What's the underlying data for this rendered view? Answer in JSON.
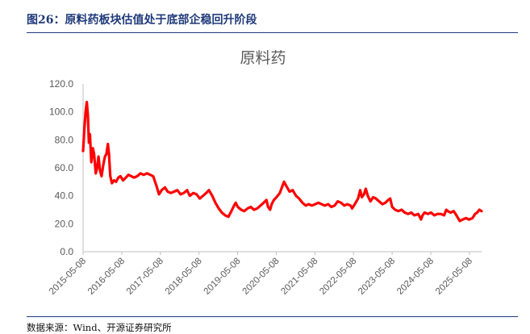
{
  "figure": {
    "title": "图26：原料药板块估值处于底部企稳回升阶段",
    "source": "数据来源：Wind、开源证券研究所"
  },
  "chart_data": {
    "type": "line",
    "title": "原料药",
    "xlabel": "",
    "ylabel": "",
    "ylim": [
      0,
      120
    ],
    "yticks": [
      "0.0",
      "20.0",
      "40.0",
      "60.0",
      "80.0",
      "100.0",
      "120.0"
    ],
    "xticks": [
      "2015-05-08",
      "2016-05-08",
      "2017-05-08",
      "2018-05-08",
      "2019-05-08",
      "2020-05-08",
      "2021-05-08",
      "2022-05-08",
      "2023-05-08",
      "2024-05-08",
      "2025-05-08"
    ],
    "xrange": [
      "2015-05-08",
      "2025-08-31"
    ],
    "grid": false,
    "legend": "none",
    "series": [
      {
        "color": "#ff0000",
        "points": [
          [
            "2015-05-08",
            72
          ],
          [
            "2015-05-20",
            88
          ],
          [
            "2015-06-01",
            100
          ],
          [
            "2015-06-12",
            107
          ],
          [
            "2015-06-22",
            98
          ],
          [
            "2015-07-02",
            78
          ],
          [
            "2015-07-12",
            84
          ],
          [
            "2015-07-25",
            64
          ],
          [
            "2015-08-08",
            74
          ],
          [
            "2015-08-20",
            70
          ],
          [
            "2015-09-05",
            56
          ],
          [
            "2015-09-18",
            60
          ],
          [
            "2015-10-01",
            68
          ],
          [
            "2015-10-15",
            58
          ],
          [
            "2015-10-30",
            54
          ],
          [
            "2015-11-15",
            62
          ],
          [
            "2015-12-01",
            68
          ],
          [
            "2015-12-15",
            70
          ],
          [
            "2015-12-28",
            77
          ],
          [
            "2016-01-08",
            70
          ],
          [
            "2016-01-20",
            54
          ],
          [
            "2016-02-05",
            49
          ],
          [
            "2016-02-25",
            51
          ],
          [
            "2016-03-15",
            50
          ],
          [
            "2016-04-05",
            53
          ],
          [
            "2016-04-25",
            54
          ],
          [
            "2016-05-20",
            51
          ],
          [
            "2016-06-15",
            53
          ],
          [
            "2016-07-10",
            55
          ],
          [
            "2016-08-05",
            54
          ],
          [
            "2016-09-01",
            53
          ],
          [
            "2016-10-01",
            54
          ],
          [
            "2016-11-01",
            56
          ],
          [
            "2016-12-01",
            55
          ],
          [
            "2017-01-01",
            56
          ],
          [
            "2017-02-01",
            55
          ],
          [
            "2017-03-01",
            54
          ],
          [
            "2017-04-01",
            47
          ],
          [
            "2017-04-25",
            41
          ],
          [
            "2017-05-20",
            44
          ],
          [
            "2017-06-20",
            46
          ],
          [
            "2017-07-15",
            43
          ],
          [
            "2017-08-15",
            42
          ],
          [
            "2017-09-15",
            43
          ],
          [
            "2017-10-15",
            44
          ],
          [
            "2017-11-15",
            41
          ],
          [
            "2017-12-15",
            42
          ],
          [
            "2018-01-15",
            44
          ],
          [
            "2018-02-10",
            40
          ],
          [
            "2018-03-15",
            42
          ],
          [
            "2018-04-15",
            41
          ],
          [
            "2018-05-15",
            38
          ],
          [
            "2018-06-15",
            40
          ],
          [
            "2018-07-15",
            42
          ],
          [
            "2018-08-10",
            44
          ],
          [
            "2018-09-10",
            40
          ],
          [
            "2018-10-10",
            35
          ],
          [
            "2018-11-10",
            31
          ],
          [
            "2018-12-10",
            28
          ],
          [
            "2019-01-10",
            26
          ],
          [
            "2019-02-10",
            25
          ],
          [
            "2019-03-10",
            29
          ],
          [
            "2019-04-05",
            33
          ],
          [
            "2019-04-20",
            35
          ],
          [
            "2019-05-10",
            32
          ],
          [
            "2019-06-10",
            30
          ],
          [
            "2019-07-10",
            29
          ],
          [
            "2019-08-10",
            31
          ],
          [
            "2019-09-10",
            32
          ],
          [
            "2019-10-10",
            30
          ],
          [
            "2019-11-10",
            31
          ],
          [
            "2019-12-10",
            33
          ],
          [
            "2020-01-10",
            35
          ],
          [
            "2020-02-05",
            37
          ],
          [
            "2020-02-20",
            32
          ],
          [
            "2020-03-10",
            30
          ],
          [
            "2020-03-25",
            34
          ],
          [
            "2020-04-15",
            37
          ],
          [
            "2020-05-10",
            39
          ],
          [
            "2020-06-10",
            42
          ],
          [
            "2020-07-05",
            47
          ],
          [
            "2020-07-20",
            50
          ],
          [
            "2020-08-10",
            47
          ],
          [
            "2020-09-10",
            43
          ],
          [
            "2020-10-10",
            44
          ],
          [
            "2020-11-10",
            40
          ],
          [
            "2020-12-10",
            38
          ],
          [
            "2021-01-10",
            35
          ],
          [
            "2021-02-10",
            33
          ],
          [
            "2021-03-10",
            34
          ],
          [
            "2021-04-10",
            33
          ],
          [
            "2021-05-10",
            34
          ],
          [
            "2021-06-10",
            35
          ],
          [
            "2021-07-10",
            34
          ],
          [
            "2021-08-10",
            33
          ],
          [
            "2021-09-10",
            34
          ],
          [
            "2021-10-10",
            32
          ],
          [
            "2021-11-10",
            33
          ],
          [
            "2021-12-10",
            36
          ],
          [
            "2022-01-10",
            35
          ],
          [
            "2022-02-10",
            33
          ],
          [
            "2022-03-10",
            34
          ],
          [
            "2022-04-10",
            33
          ],
          [
            "2022-04-25",
            31
          ],
          [
            "2022-05-20",
            34
          ],
          [
            "2022-06-20",
            38
          ],
          [
            "2022-07-10",
            44
          ],
          [
            "2022-07-25",
            39
          ],
          [
            "2022-08-15",
            41
          ],
          [
            "2022-09-01",
            45
          ],
          [
            "2022-09-20",
            40
          ],
          [
            "2022-10-15",
            36
          ],
          [
            "2022-11-10",
            39
          ],
          [
            "2022-12-05",
            38
          ],
          [
            "2023-01-05",
            36
          ],
          [
            "2023-02-05",
            34
          ],
          [
            "2023-03-05",
            35
          ],
          [
            "2023-04-01",
            37
          ],
          [
            "2023-04-20",
            38
          ],
          [
            "2023-05-08",
            32
          ],
          [
            "2023-06-05",
            30
          ],
          [
            "2023-07-05",
            29
          ],
          [
            "2023-08-05",
            30
          ],
          [
            "2023-09-05",
            28
          ],
          [
            "2023-10-05",
            27
          ],
          [
            "2023-11-05",
            28
          ],
          [
            "2023-12-05",
            26
          ],
          [
            "2024-01-10",
            27
          ],
          [
            "2024-02-05",
            23
          ],
          [
            "2024-02-20",
            26
          ],
          [
            "2024-03-10",
            28
          ],
          [
            "2024-04-10",
            27
          ],
          [
            "2024-05-10",
            28
          ],
          [
            "2024-06-10",
            26
          ],
          [
            "2024-07-10",
            27
          ],
          [
            "2024-08-10",
            27
          ],
          [
            "2024-09-10",
            26
          ],
          [
            "2024-10-01",
            30
          ],
          [
            "2024-10-15",
            29
          ],
          [
            "2024-11-10",
            28
          ],
          [
            "2024-12-10",
            29
          ],
          [
            "2025-01-05",
            26
          ],
          [
            "2025-02-05",
            22
          ],
          [
            "2025-03-05",
            23
          ],
          [
            "2025-04-05",
            24
          ],
          [
            "2025-05-05",
            23
          ],
          [
            "2025-06-05",
            24
          ],
          [
            "2025-07-01",
            27
          ],
          [
            "2025-07-20",
            28
          ],
          [
            "2025-08-10",
            30
          ],
          [
            "2025-08-31",
            29
          ]
        ]
      }
    ]
  }
}
